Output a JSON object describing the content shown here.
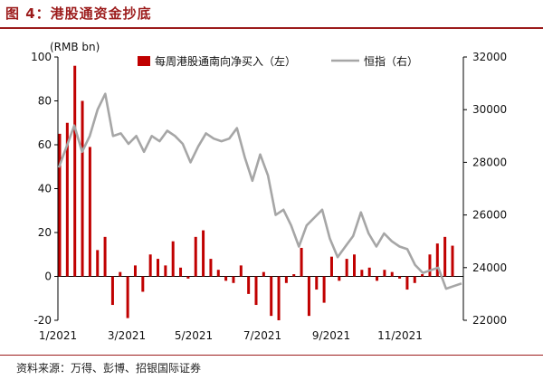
{
  "figure": {
    "title": "图 4：港股通资金抄底",
    "source": "资料来源：万得、彭博、招银国际证券"
  },
  "chart_data": {
    "type": "bar",
    "left_unit": "(RMB bn)",
    "left_ylim": [
      -20,
      100
    ],
    "left_ticks": [
      "-20",
      "0",
      "20",
      "40",
      "60",
      "80",
      "100"
    ],
    "right_ylim": [
      22000,
      32000
    ],
    "right_ticks": [
      "22000",
      "24000",
      "26000",
      "28000",
      "30000",
      "32000"
    ],
    "x_ticks": [
      "1/2021",
      "3/2021",
      "5/2021",
      "7/2021",
      "9/2021",
      "11/2021"
    ],
    "grid": false,
    "legend_position": "top",
    "series": [
      {
        "name": "每周港股通南向净买入（左）",
        "axis": "left",
        "type": "bar",
        "color": "#c00000",
        "values": [
          65,
          70,
          96,
          80,
          59,
          12,
          18,
          -13,
          2,
          -19,
          5,
          -7,
          10,
          8,
          5,
          16,
          4,
          -1,
          18,
          21,
          8,
          3,
          -2,
          -3,
          5,
          -8,
          -13,
          2,
          -18,
          -20,
          -3,
          1,
          13,
          -18,
          -6,
          -12,
          9,
          -2,
          8,
          10,
          3,
          4,
          -2,
          3,
          2,
          -1,
          -6,
          -3,
          1,
          10,
          15,
          18,
          14
        ]
      },
      {
        "name": "恒指（右）",
        "axis": "right",
        "type": "line",
        "color": "#a6a6a6",
        "values": [
          27800,
          28600,
          29400,
          28400,
          29000,
          30000,
          30600,
          29000,
          29100,
          28700,
          29000,
          28400,
          29000,
          28800,
          29200,
          29000,
          28700,
          28000,
          28600,
          29100,
          28900,
          28800,
          28900,
          29300,
          28200,
          27300,
          28300,
          27500,
          26000,
          26200,
          25600,
          24800,
          25600,
          25900,
          26200,
          25100,
          24400,
          24800,
          25200,
          26100,
          25300,
          24800,
          25300,
          25000,
          24800,
          24700,
          24100,
          23800,
          23900,
          24000,
          23200,
          23300,
          23400
        ]
      }
    ]
  }
}
